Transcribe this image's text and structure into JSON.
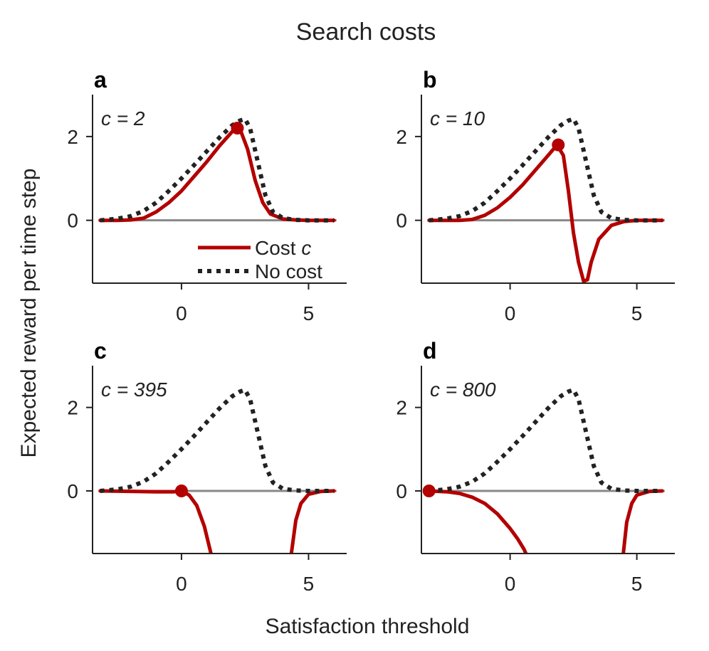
{
  "title": "Search costs",
  "xlabel": "Satisfaction threshold",
  "ylabel": "Expected reward per time step",
  "colors": {
    "cost": "#b30000",
    "no_cost": "#222222",
    "zero_line": "#888888"
  },
  "legend": {
    "cost_label": "Cost",
    "cost_symbol": "c",
    "no_cost_label": "No cost"
  },
  "chart_data": [
    {
      "panel": "a",
      "type": "line",
      "annotation": "c = 2",
      "xlim": [
        -3.5,
        6.5
      ],
      "ylim": [
        -1.5,
        3
      ],
      "grid": false,
      "xticks": [
        0,
        5
      ],
      "yticks": [
        0,
        2
      ],
      "legend": "lower-right",
      "series": [
        {
          "name": "Cost c",
          "style": "solid",
          "color": "#b30000",
          "x": [
            -3.2,
            -2.5,
            -2,
            -1.5,
            -1,
            -0.5,
            0,
            0.5,
            1,
            1.5,
            2,
            2.3,
            2.6,
            2.9,
            3.2,
            3.5,
            4,
            4.5,
            5,
            6
          ],
          "y": [
            0,
            0,
            0.01,
            0.05,
            0.2,
            0.42,
            0.7,
            1.05,
            1.4,
            1.78,
            2.12,
            2.18,
            1.7,
            0.95,
            0.42,
            0.15,
            0.03,
            0.01,
            0,
            0
          ]
        },
        {
          "name": "No cost",
          "style": "dotted",
          "color": "#222222",
          "x": [
            -3.2,
            -2.5,
            -2,
            -1.5,
            -1,
            -0.5,
            0,
            0.5,
            1,
            1.5,
            2,
            2.3,
            2.5,
            2.7,
            3,
            3.3,
            3.6,
            4,
            4.5,
            5,
            6
          ],
          "y": [
            0,
            0.04,
            0.1,
            0.22,
            0.42,
            0.7,
            1.0,
            1.32,
            1.65,
            1.98,
            2.27,
            2.38,
            2.42,
            2.2,
            1.4,
            0.6,
            0.2,
            0.05,
            0.01,
            0,
            0
          ]
        }
      ],
      "optimum": {
        "x": 2.2,
        "y": 2.2
      }
    },
    {
      "panel": "b",
      "type": "line",
      "annotation": "c = 10",
      "xlim": [
        -3.5,
        6.5
      ],
      "ylim": [
        -1.5,
        3
      ],
      "grid": false,
      "xticks": [
        0,
        5
      ],
      "yticks": [
        0,
        2
      ],
      "series": [
        {
          "name": "Cost c",
          "style": "solid",
          "color": "#b30000",
          "x": [
            -3.2,
            -2,
            -1.5,
            -1,
            -0.5,
            0,
            0.5,
            1,
            1.5,
            1.85,
            2.1,
            2.3,
            2.5,
            2.7,
            2.9,
            3.05,
            3.2,
            3.5,
            4,
            4.5,
            5,
            6
          ],
          "y": [
            0,
            0,
            0.02,
            0.12,
            0.3,
            0.55,
            0.85,
            1.2,
            1.55,
            1.8,
            1.55,
            0.7,
            -0.3,
            -1.0,
            -1.45,
            -1.42,
            -1.0,
            -0.45,
            -0.12,
            -0.03,
            0,
            0
          ]
        },
        {
          "name": "No cost",
          "style": "dotted",
          "color": "#222222",
          "x": [
            -3.2,
            -2.5,
            -2,
            -1.5,
            -1,
            -0.5,
            0,
            0.5,
            1,
            1.5,
            2,
            2.3,
            2.5,
            2.7,
            3,
            3.3,
            3.6,
            4,
            4.5,
            5,
            6
          ],
          "y": [
            0,
            0.04,
            0.1,
            0.22,
            0.42,
            0.7,
            1.0,
            1.32,
            1.65,
            1.98,
            2.27,
            2.38,
            2.42,
            2.2,
            1.4,
            0.6,
            0.2,
            0.05,
            0.01,
            0,
            0
          ]
        }
      ],
      "optimum": {
        "x": 1.9,
        "y": 1.8
      }
    },
    {
      "panel": "c",
      "type": "line",
      "annotation": "c = 395",
      "xlim": [
        -3.5,
        6.5
      ],
      "ylim": [
        -1.5,
        3
      ],
      "grid": false,
      "xticks": [
        0,
        5
      ],
      "yticks": [
        0,
        2
      ],
      "series": [
        {
          "name": "Cost c",
          "style": "solid",
          "color": "#b30000",
          "x": [
            -3.2,
            -2,
            -1,
            -0.3,
            0,
            0.3,
            0.6,
            0.9,
            1.2,
            null,
            4.3,
            4.5,
            4.7,
            5,
            5.5,
            6
          ],
          "y": [
            0,
            -0.01,
            -0.02,
            -0.02,
            0,
            -0.1,
            -0.35,
            -0.85,
            -1.6,
            null,
            -1.6,
            -0.7,
            -0.3,
            -0.08,
            -0.01,
            0
          ]
        },
        {
          "name": "No cost",
          "style": "dotted",
          "color": "#222222",
          "x": [
            -3.2,
            -2.5,
            -2,
            -1.5,
            -1,
            -0.5,
            0,
            0.5,
            1,
            1.5,
            2,
            2.3,
            2.5,
            2.7,
            3,
            3.3,
            3.6,
            4,
            4.5,
            5,
            6
          ],
          "y": [
            0,
            0.04,
            0.1,
            0.22,
            0.42,
            0.7,
            1.0,
            1.32,
            1.65,
            1.98,
            2.27,
            2.38,
            2.42,
            2.2,
            1.4,
            0.6,
            0.2,
            0.05,
            0.01,
            0,
            0
          ]
        }
      ],
      "optimum": {
        "x": 0,
        "y": 0
      }
    },
    {
      "panel": "d",
      "type": "line",
      "annotation": "c = 800",
      "xlim": [
        -3.5,
        6.5
      ],
      "ylim": [
        -1.5,
        3
      ],
      "grid": false,
      "xticks": [
        0,
        5
      ],
      "yticks": [
        0,
        2
      ],
      "series": [
        {
          "name": "Cost c",
          "style": "solid",
          "color": "#b30000",
          "x": [
            -3.2,
            -2.5,
            -2,
            -1.5,
            -1,
            -0.5,
            0,
            0.3,
            0.55,
            0.7,
            null,
            4.45,
            4.6,
            4.8,
            5,
            5.5,
            6
          ],
          "y": [
            0,
            -0.02,
            -0.06,
            -0.15,
            -0.3,
            -0.55,
            -0.9,
            -1.15,
            -1.4,
            -1.6,
            null,
            -1.6,
            -0.75,
            -0.3,
            -0.1,
            -0.01,
            0
          ]
        },
        {
          "name": "No cost",
          "style": "dotted",
          "color": "#222222",
          "x": [
            -3.2,
            -2.5,
            -2,
            -1.5,
            -1,
            -0.5,
            0,
            0.5,
            1,
            1.5,
            2,
            2.3,
            2.5,
            2.7,
            3,
            3.3,
            3.6,
            4,
            4.5,
            5,
            6
          ],
          "y": [
            0,
            0.04,
            0.1,
            0.22,
            0.42,
            0.7,
            1.0,
            1.32,
            1.65,
            1.98,
            2.27,
            2.38,
            2.42,
            2.2,
            1.4,
            0.6,
            0.2,
            0.05,
            0.01,
            0,
            0
          ]
        }
      ],
      "optimum": {
        "x": -3.2,
        "y": 0
      }
    }
  ]
}
